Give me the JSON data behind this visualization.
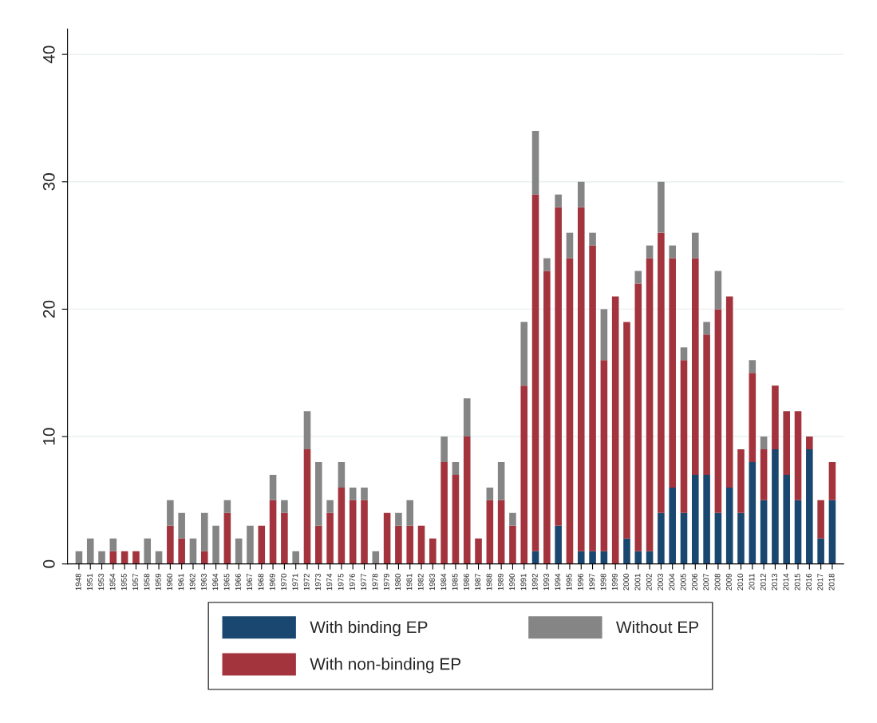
{
  "chart_data": {
    "type": "bar",
    "stacked": true,
    "categories": [
      "1948",
      "1951",
      "1953",
      "1954",
      "1955",
      "1957",
      "1958",
      "1959",
      "1960",
      "1961",
      "1962",
      "1963",
      "1964",
      "1965",
      "1966",
      "1967",
      "1968",
      "1969",
      "1970",
      "1971",
      "1972",
      "1973",
      "1974",
      "1975",
      "1976",
      "1977",
      "1978",
      "1979",
      "1980",
      "1981",
      "1982",
      "1983",
      "1984",
      "1985",
      "1986",
      "1987",
      "1988",
      "1989",
      "1990",
      "1991",
      "1992",
      "1993",
      "1994",
      "1995",
      "1996",
      "1997",
      "1998",
      "1999",
      "2000",
      "2001",
      "2002",
      "2003",
      "2004",
      "2005",
      "2006",
      "2007",
      "2008",
      "2009",
      "2010",
      "2011",
      "2012",
      "2013",
      "2014",
      "2015",
      "2016",
      "2017",
      "2018"
    ],
    "series": [
      {
        "name": "With binding EP",
        "color": "#1a476f",
        "values": [
          0,
          0,
          0,
          0,
          0,
          0,
          0,
          0,
          0,
          0,
          0,
          0,
          0,
          0,
          0,
          0,
          0,
          0,
          0,
          0,
          0,
          0,
          0,
          0,
          0,
          0,
          0,
          0,
          0,
          0,
          0,
          0,
          0,
          0,
          0,
          0,
          0,
          0,
          0,
          0,
          1,
          0,
          3,
          0,
          1,
          1,
          1,
          0,
          2,
          1,
          1,
          4,
          6,
          4,
          7,
          7,
          4,
          6,
          4,
          8,
          5,
          9,
          7,
          5,
          9,
          2,
          5
        ]
      },
      {
        "name": "With non-binding EP",
        "color": "#a3333c",
        "values": [
          0,
          0,
          0,
          1,
          1,
          1,
          0,
          0,
          3,
          2,
          0,
          1,
          0,
          4,
          0,
          0,
          3,
          5,
          4,
          0,
          9,
          3,
          4,
          6,
          5,
          5,
          0,
          4,
          3,
          3,
          3,
          2,
          8,
          7,
          10,
          2,
          5,
          5,
          3,
          14,
          28,
          23,
          25,
          24,
          27,
          24,
          15,
          21,
          17,
          21,
          23,
          22,
          18,
          12,
          17,
          11,
          16,
          15,
          5,
          7,
          4,
          5,
          5,
          7,
          1,
          3,
          3
        ]
      },
      {
        "name": "Without EP",
        "color": "#858585",
        "values": [
          1,
          2,
          1,
          1,
          0,
          0,
          2,
          1,
          2,
          2,
          2,
          3,
          3,
          1,
          2,
          3,
          0,
          2,
          1,
          1,
          3,
          5,
          1,
          2,
          1,
          1,
          1,
          0,
          1,
          2,
          0,
          0,
          2,
          1,
          3,
          0,
          1,
          3,
          1,
          5,
          5,
          1,
          1,
          2,
          2,
          1,
          4,
          0,
          0,
          1,
          1,
          4,
          1,
          1,
          2,
          1,
          3,
          0,
          0,
          1,
          1,
          0,
          0,
          0,
          0,
          0,
          0
        ]
      }
    ],
    "ylim": [
      0,
      42
    ],
    "yticks": [
      0,
      10,
      20,
      30,
      40
    ],
    "grid": "y",
    "legend": "bottom"
  }
}
